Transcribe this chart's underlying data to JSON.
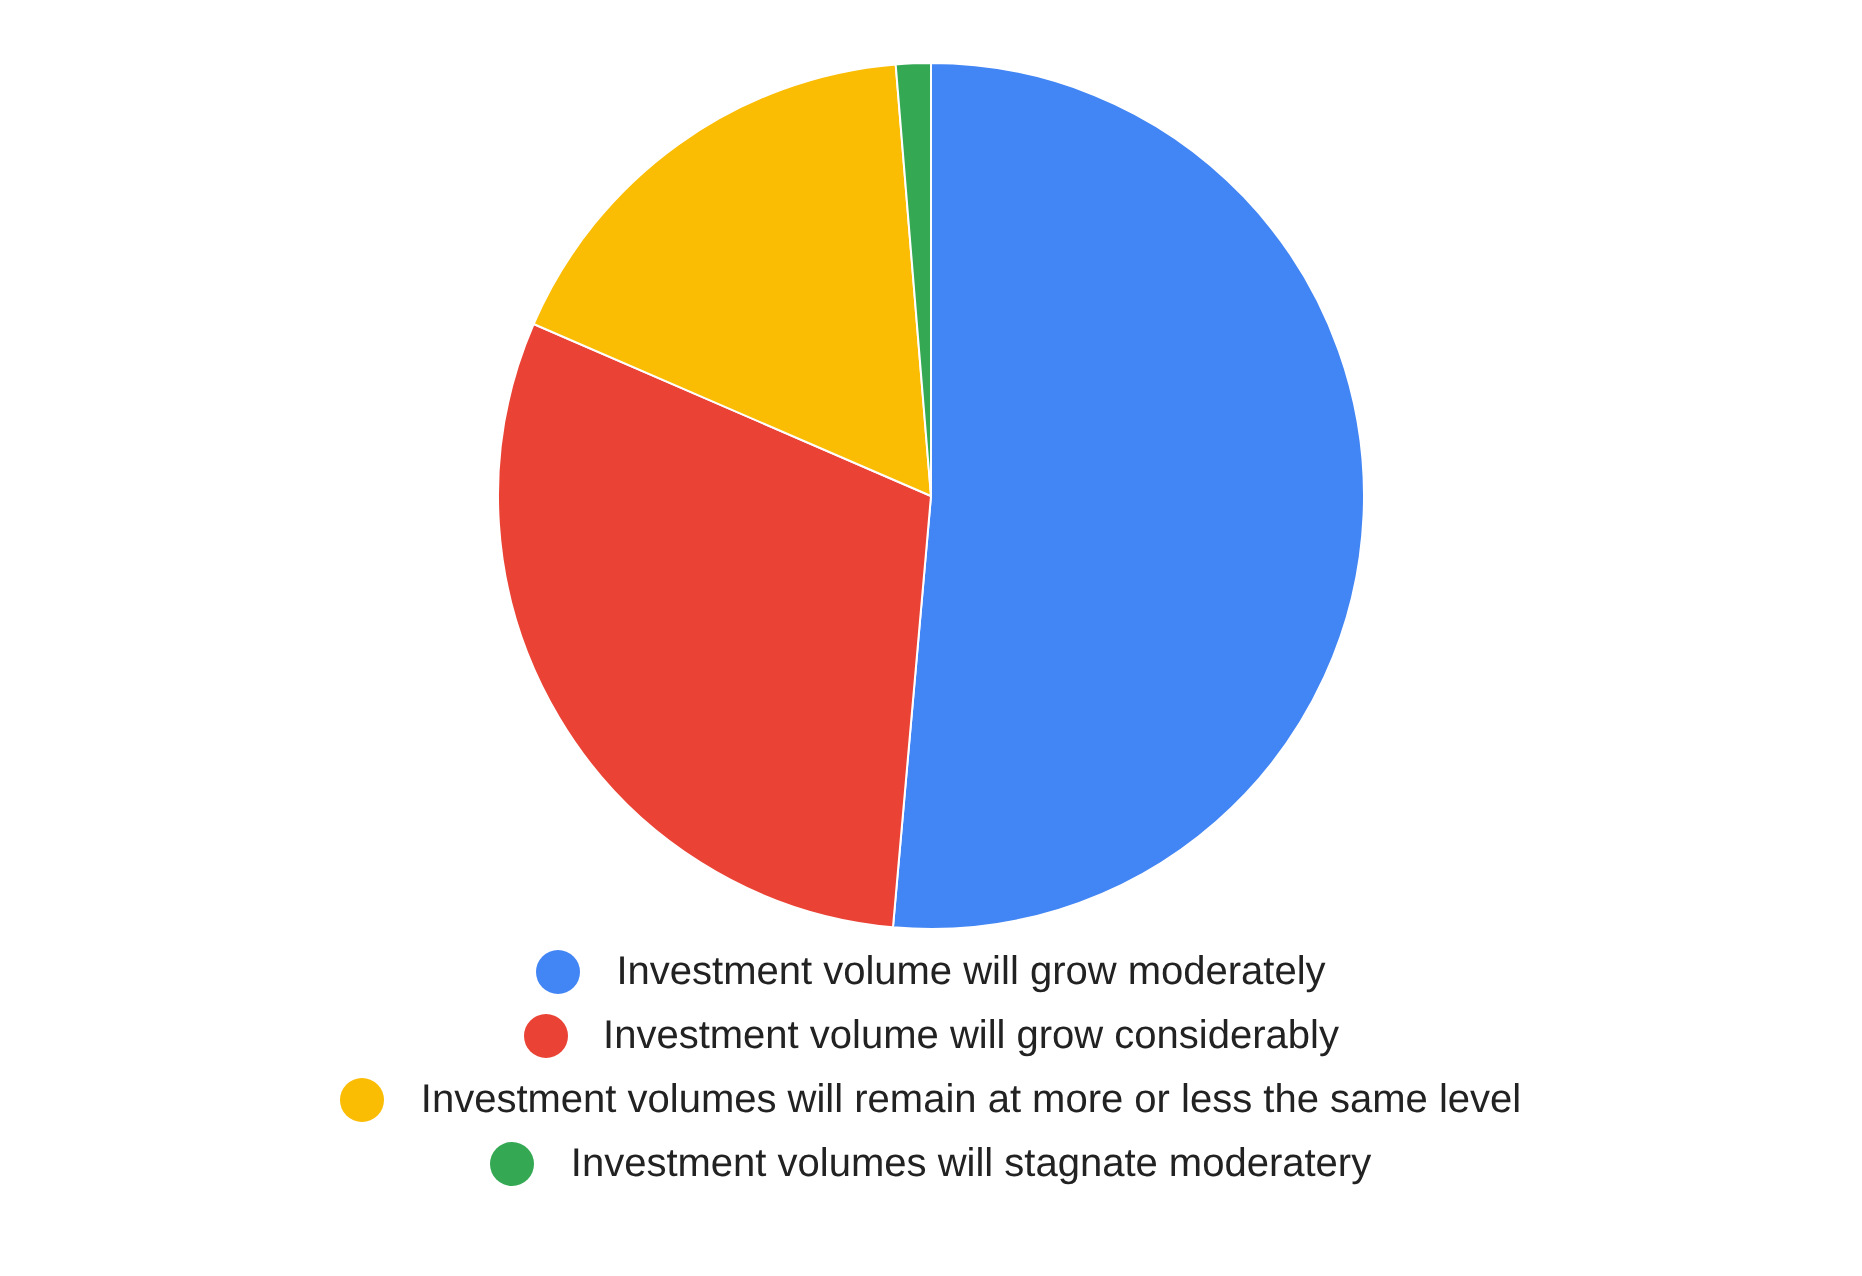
{
  "chart_data": {
    "type": "pie",
    "categories": [
      "Investment volume will grow moderately",
      "Investment volume will grow considerably",
      "Investment volumes will remain at more or less the same level",
      "Investment volumes will stagnate moderatery"
    ],
    "values": [
      51.4,
      30.1,
      17.2,
      1.3
    ],
    "colors": [
      "#4285f4",
      "#ea4335",
      "#fbbc04",
      "#34a853"
    ],
    "legend": "bottom"
  }
}
